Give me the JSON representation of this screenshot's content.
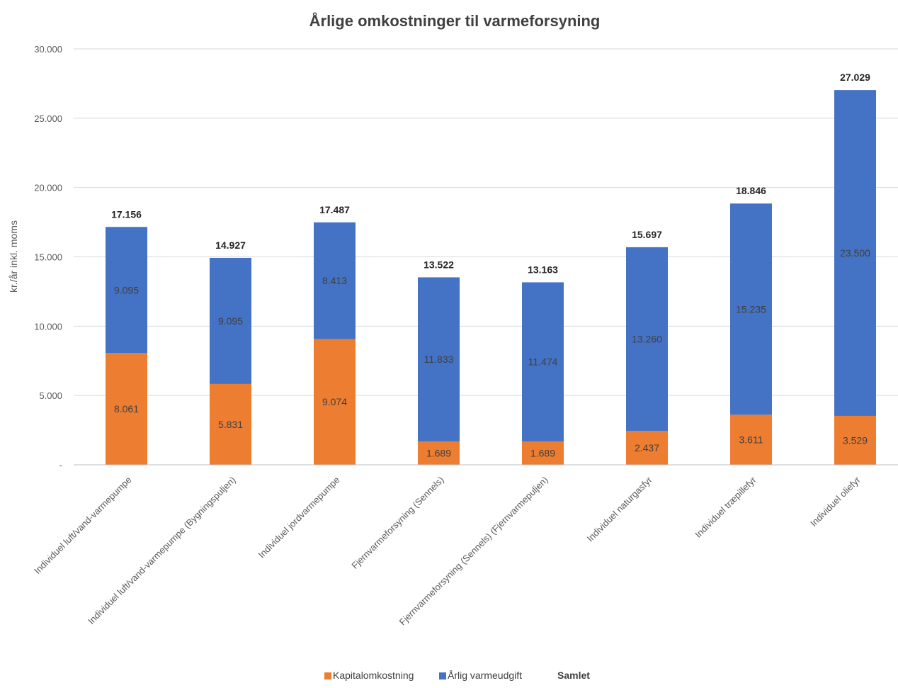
{
  "chart_data": {
    "type": "bar",
    "stacked": true,
    "title": "Årlige omkostninger til varmeforsyning",
    "xlabel": "",
    "ylabel": "kr./år inkl. moms",
    "ylim": [
      0,
      30000
    ],
    "yticks": [
      0,
      5000,
      10000,
      15000,
      20000,
      25000,
      30000
    ],
    "ytick_labels": [
      "-",
      "5.000",
      "10.000",
      "15.000",
      "20.000",
      "25.000",
      "30.000"
    ],
    "grid": true,
    "legend_position": "bottom",
    "categories": [
      "Individuel luft/vand-varmepumpe",
      "Individuel luft/vand-varmepumpe (Bygningspuljen)",
      "Individuel jordvarmepumpe",
      "Fjernvarmeforsyning (Sennels)",
      "Fjernvarmeforsyning (Sennels) (Fjernvarmepuljen)",
      "Individuel naturgasfyr",
      "Individuel træpillefyr",
      "Individuel oliefyr"
    ],
    "series": [
      {
        "name": "Kapitalomkostning",
        "color": "#ED7D31",
        "values": [
          8061,
          5831,
          9074,
          1689,
          1689,
          2437,
          3611,
          3529
        ],
        "labels": [
          "8.061",
          "5.831",
          "9.074",
          "1.689",
          "1.689",
          "2.437",
          "3.611",
          "3.529"
        ]
      },
      {
        "name": "Årlig varmeudgift",
        "color": "#4472C4",
        "values": [
          9095,
          9095,
          8413,
          11833,
          11474,
          13260,
          15235,
          23500
        ],
        "labels": [
          "9.095",
          "9.095",
          "8.413",
          "11.833",
          "11.474",
          "13.260",
          "15.235",
          "23.500"
        ]
      }
    ],
    "totals": {
      "name": "Samlet",
      "values": [
        17156,
        14927,
        17487,
        13522,
        13163,
        15697,
        18846,
        27029
      ],
      "labels": [
        "17.156",
        "14.927",
        "17.487",
        "13.522",
        "13.163",
        "15.697",
        "18.846",
        "27.029"
      ]
    }
  }
}
